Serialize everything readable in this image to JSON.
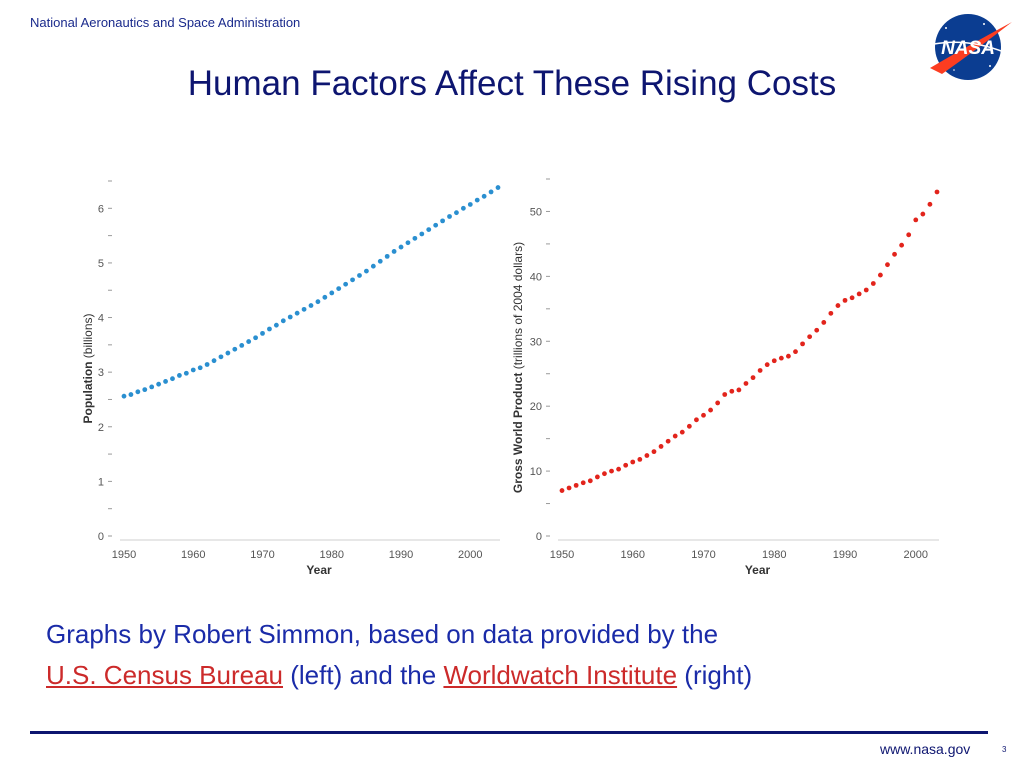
{
  "header": {
    "agency": "National Aeronautics and Space Administration",
    "logo_text": "NASA"
  },
  "slide": {
    "title": "Human Factors Affect These Rising Costs"
  },
  "caption": {
    "line1": "Graphs by Robert Simmon, based on data provided by the",
    "link1": "U.S. Census Bureau",
    "mid": " (left) and the ",
    "link2": "Worldwatch Institute",
    "end": " (right)"
  },
  "footer": {
    "url": "www.nasa.gov",
    "page": "3"
  },
  "colors": {
    "title": "#0d1570",
    "caption": "#1a2ba8",
    "link": "#cc2a2a",
    "series_left": "#2a8fd0",
    "series_right": "#e2241c"
  },
  "chart_data": [
    {
      "type": "scatter",
      "xlabel": "Year",
      "ylabel_bold": "Population",
      "ylabel_unit": "(billions)",
      "xlim": [
        1950,
        2004
      ],
      "ylim": [
        0,
        6.5
      ],
      "xticks": [
        1950,
        1960,
        1970,
        1980,
        1990,
        2000
      ],
      "yticks": [
        0,
        1,
        2,
        3,
        4,
        5,
        6
      ],
      "series": [
        {
          "x": [
            1950,
            1951,
            1952,
            1953,
            1954,
            1955,
            1956,
            1957,
            1958,
            1959,
            1960,
            1961,
            1962,
            1963,
            1964,
            1965,
            1966,
            1967,
            1968,
            1969,
            1970,
            1971,
            1972,
            1973,
            1974,
            1975,
            1976,
            1977,
            1978,
            1979,
            1980,
            1981,
            1982,
            1983,
            1984,
            1985,
            1986,
            1987,
            1988,
            1989,
            1990,
            1991,
            1992,
            1993,
            1994,
            1995,
            1996,
            1997,
            1998,
            1999,
            2000,
            2001,
            2002,
            2003,
            2004
          ],
          "y": [
            2.56,
            2.59,
            2.64,
            2.68,
            2.73,
            2.78,
            2.83,
            2.88,
            2.94,
            2.98,
            3.04,
            3.08,
            3.14,
            3.21,
            3.28,
            3.35,
            3.42,
            3.49,
            3.56,
            3.63,
            3.71,
            3.79,
            3.86,
            3.94,
            4.01,
            4.08,
            4.15,
            4.22,
            4.29,
            4.37,
            4.45,
            4.53,
            4.61,
            4.69,
            4.77,
            4.85,
            4.94,
            5.03,
            5.12,
            5.21,
            5.29,
            5.37,
            5.45,
            5.53,
            5.61,
            5.69,
            5.77,
            5.85,
            5.92,
            6.0,
            6.07,
            6.15,
            6.22,
            6.3,
            6.38
          ]
        }
      ]
    },
    {
      "type": "scatter",
      "xlabel": "Year",
      "ylabel_bold": "Gross World Product",
      "ylabel_unit": "(trillions of 2004 dollars)",
      "xlim": [
        1950,
        2003
      ],
      "ylim": [
        0,
        55
      ],
      "xticks": [
        1950,
        1960,
        1970,
        1980,
        1990,
        2000
      ],
      "yticks": [
        0,
        10,
        20,
        30,
        40,
        50
      ],
      "series": [
        {
          "x": [
            1950,
            1951,
            1952,
            1953,
            1954,
            1955,
            1956,
            1957,
            1958,
            1959,
            1960,
            1961,
            1962,
            1963,
            1964,
            1965,
            1966,
            1967,
            1968,
            1969,
            1970,
            1971,
            1972,
            1973,
            1974,
            1975,
            1976,
            1977,
            1978,
            1979,
            1980,
            1981,
            1982,
            1983,
            1984,
            1985,
            1986,
            1987,
            1988,
            1989,
            1990,
            1991,
            1992,
            1993,
            1994,
            1995,
            1996,
            1997,
            1998,
            1999,
            2000,
            2001,
            2002,
            2003
          ],
          "y": [
            7.0,
            7.4,
            7.8,
            8.2,
            8.5,
            9.1,
            9.6,
            10.0,
            10.3,
            10.9,
            11.4,
            11.8,
            12.4,
            13.0,
            13.8,
            14.6,
            15.4,
            16.0,
            16.9,
            17.9,
            18.6,
            19.4,
            20.5,
            21.8,
            22.3,
            22.5,
            23.5,
            24.4,
            25.5,
            26.4,
            27.0,
            27.4,
            27.7,
            28.4,
            29.6,
            30.7,
            31.7,
            32.9,
            34.3,
            35.5,
            36.3,
            36.7,
            37.3,
            37.9,
            38.9,
            40.2,
            41.8,
            43.4,
            44.8,
            46.4,
            48.7,
            49.6,
            51.1,
            53.0
          ]
        }
      ]
    }
  ]
}
